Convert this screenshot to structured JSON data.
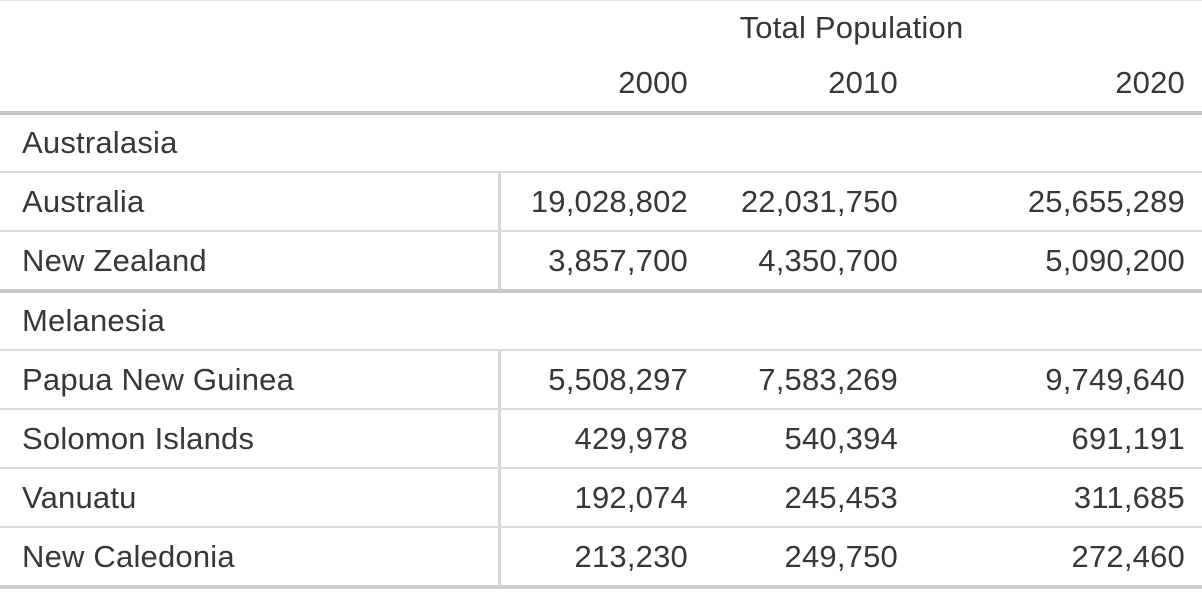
{
  "table": {
    "title": "Total Population",
    "year_columns": [
      "2000",
      "2010",
      "2020"
    ],
    "groups": [
      {
        "name": "Australasia",
        "rows": [
          {
            "label": "Australia",
            "values": [
              "19,028,802",
              "22,031,750",
              "25,655,289"
            ]
          },
          {
            "label": "New Zealand",
            "values": [
              "3,857,700",
              "4,350,700",
              "5,090,200"
            ]
          }
        ]
      },
      {
        "name": "Melanesia",
        "rows": [
          {
            "label": "Papua New Guinea",
            "values": [
              "5,508,297",
              "7,583,269",
              "9,749,640"
            ]
          },
          {
            "label": "Solomon Islands",
            "values": [
              "429,978",
              "540,394",
              "691,191"
            ]
          },
          {
            "label": "Vanuatu",
            "values": [
              "192,074",
              "245,453",
              "311,685"
            ]
          },
          {
            "label": "New Caledonia",
            "values": [
              "213,230",
              "249,750",
              "272,460"
            ]
          }
        ]
      }
    ]
  },
  "chart_data": {
    "type": "table",
    "title": "Total Population",
    "columns": [
      "2000",
      "2010",
      "2020"
    ],
    "groups": [
      {
        "name": "Australasia",
        "rows": [
          {
            "label": "Australia",
            "values": [
              19028802,
              22031750,
              25655289
            ]
          },
          {
            "label": "New Zealand",
            "values": [
              3857700,
              4350700,
              5090200
            ]
          }
        ]
      },
      {
        "name": "Melanesia",
        "rows": [
          {
            "label": "Papua New Guinea",
            "values": [
              5508297,
              7583269,
              9749640
            ]
          },
          {
            "label": "Solomon Islands",
            "values": [
              429978,
              540394,
              691191
            ]
          },
          {
            "label": "Vanuatu",
            "values": [
              192074,
              245453,
              311685
            ]
          },
          {
            "label": "New Caledonia",
            "values": [
              213230,
              249750,
              272460
            ]
          }
        ]
      }
    ]
  },
  "colors": {
    "text": "#373737",
    "heavy_rule": "#c7c7c7",
    "light_rule": "#dbdbdb",
    "divider": "#d6d6d6",
    "background": "#ffffff"
  }
}
